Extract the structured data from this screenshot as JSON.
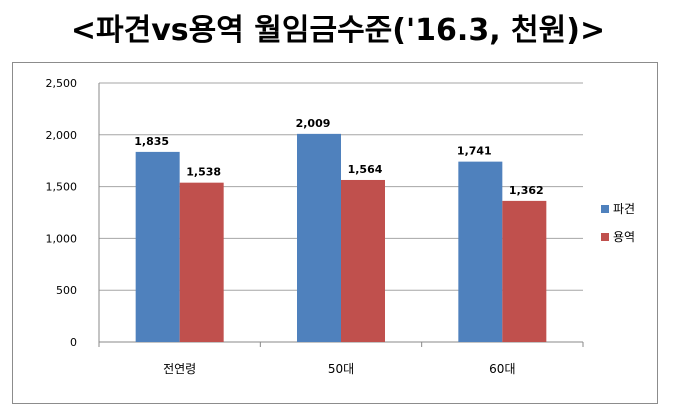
{
  "page": {
    "heading": "<파견vs용역  월임금수준('16.3, 천원)>"
  },
  "colors": {
    "series": [
      "#4f81bd",
      "#c0504d"
    ],
    "grid": "#a6a6a6",
    "axis": "#888888"
  },
  "chart_data": {
    "type": "bar",
    "title": "",
    "xlabel": "",
    "ylabel": "",
    "categories": [
      "전연령",
      "50대",
      "60대"
    ],
    "series": [
      {
        "name": "파견",
        "values": [
          1835,
          2009,
          1741
        ]
      },
      {
        "name": "용역",
        "values": [
          1538,
          1564,
          1362
        ]
      }
    ],
    "data_labels": [
      [
        "1,835",
        "2,009",
        "1,741"
      ],
      [
        "1,538",
        "1,564",
        "1,362"
      ]
    ],
    "ylim": [
      0,
      2500
    ],
    "yticks": [
      0,
      500,
      1000,
      1500,
      2000,
      2500
    ],
    "ytick_labels": [
      "0",
      "500",
      "1,000",
      "1,500",
      "2,000",
      "2,500"
    ],
    "grid": true,
    "legend_position": "right"
  }
}
